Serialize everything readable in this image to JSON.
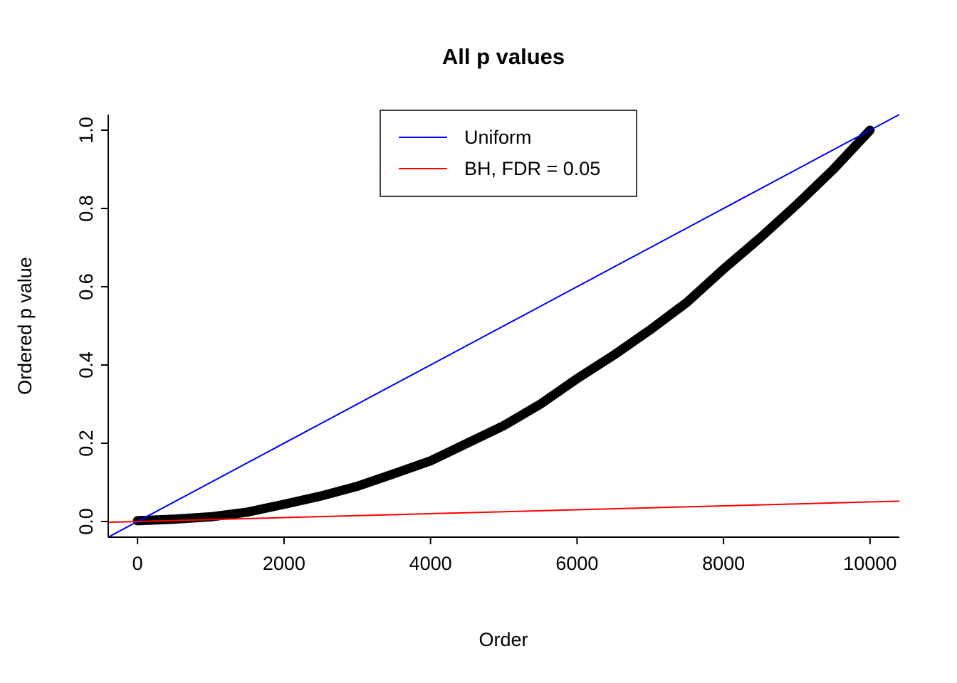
{
  "chart_data": {
    "type": "scatter",
    "title": "All p values",
    "xlabel": "Order",
    "ylabel": "Ordered p value",
    "xlim": [
      -400,
      10400
    ],
    "ylim": [
      -0.04,
      1.04
    ],
    "grid": false,
    "background": "#ffffff",
    "axis_color": "#000000",
    "x_ticks": {
      "values": [
        0,
        2000,
        4000,
        6000,
        8000,
        10000
      ],
      "labels": [
        "0",
        "2000",
        "4000",
        "6000",
        "8000",
        "10000"
      ]
    },
    "y_ticks": {
      "values": [
        0.0,
        0.2,
        0.4,
        0.6,
        0.8,
        1.0
      ],
      "labels": [
        "0.0",
        "0.2",
        "0.4",
        "0.6",
        "0.8",
        "1.0"
      ]
    },
    "legend": {
      "position": "top-center",
      "entries": [
        {
          "name": "uniform",
          "label": "Uniform",
          "color": "#0000ff"
        },
        {
          "name": "bh-fdr-005",
          "label": "BH, FDR = 0.05",
          "color": "#ff0000"
        }
      ]
    },
    "reference_lines": [
      {
        "name": "uniform-line",
        "color": "#0000ff",
        "intercept": 0,
        "slope": 0.0001
      },
      {
        "name": "bh-fdr-line",
        "color": "#ff0000",
        "intercept": 0,
        "slope": 5e-06
      }
    ],
    "series": [
      {
        "name": "ordered-p-values",
        "color": "#000000",
        "marker": "point",
        "x": [
          0,
          500,
          1000,
          1500,
          2000,
          2500,
          3000,
          3500,
          4000,
          4500,
          5000,
          5500,
          6000,
          6500,
          7000,
          7500,
          8000,
          8500,
          9000,
          9500,
          10000
        ],
        "y": [
          0.002,
          0.006,
          0.012,
          0.024,
          0.044,
          0.065,
          0.09,
          0.122,
          0.155,
          0.2,
          0.245,
          0.3,
          0.365,
          0.425,
          0.49,
          0.56,
          0.645,
          0.725,
          0.81,
          0.9,
          1.0
        ]
      }
    ]
  }
}
